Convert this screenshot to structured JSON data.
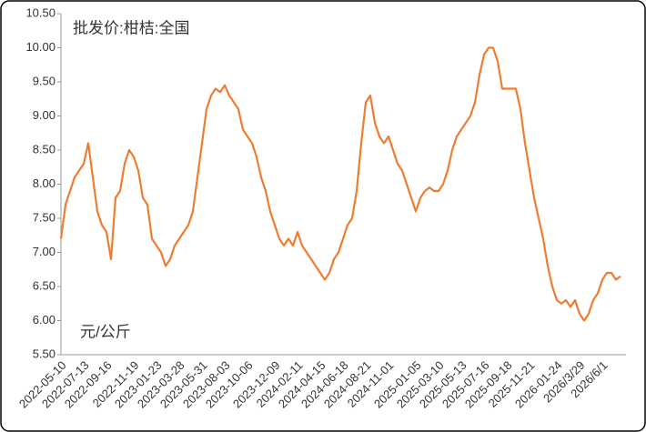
{
  "chart_data": {
    "type": "line",
    "title": "批发价:柑桔:全国",
    "y_label": "元/公斤",
    "categories": [
      "2022-05-10",
      null,
      null,
      null,
      null,
      "2022-07-13",
      null,
      null,
      null,
      null,
      "2022-09-16",
      null,
      null,
      null,
      null,
      null,
      "2022-11-19",
      null,
      null,
      null,
      null,
      "2023-01-23",
      null,
      null,
      null,
      null,
      "2023-03-28",
      null,
      null,
      null,
      null,
      "2023-05-31",
      null,
      null,
      null,
      null,
      "2023-08-03",
      null,
      null,
      null,
      null,
      "2023-10-06",
      null,
      null,
      null,
      null,
      null,
      "2023-12-09",
      null,
      null,
      null,
      null,
      "2024-02-11",
      null,
      null,
      null,
      null,
      "2024-04-15",
      null,
      null,
      null,
      null,
      "2024-06-18",
      null,
      null,
      null,
      null,
      "2024-08-21",
      null,
      null,
      null,
      null,
      "2024-11-01",
      null,
      null,
      null,
      null,
      null,
      "2025-01-05",
      null,
      null,
      null,
      null,
      "2025-03-10",
      null,
      null,
      null,
      null,
      "2025-05-13",
      null,
      null,
      null,
      null,
      "2025-07-16",
      null,
      null,
      null,
      null,
      "2025-09-18",
      null,
      null,
      null,
      null,
      "2025-11-21",
      null,
      null,
      null,
      null,
      null,
      "2026-01-24",
      null,
      null,
      null,
      null,
      "2026/3/29",
      null,
      null,
      null,
      null,
      "2026/6/1",
      null,
      null,
      null,
      null
    ],
    "series": [
      {
        "name": "批发价:柑桔:全国",
        "color": "#ed7d31",
        "values": [
          7.2,
          7.7,
          7.9,
          8.1,
          8.2,
          8.3,
          8.6,
          8.1,
          7.6,
          7.4,
          7.3,
          6.9,
          7.8,
          7.9,
          8.3,
          8.5,
          8.4,
          8.2,
          7.8,
          7.7,
          7.2,
          7.1,
          7.0,
          6.8,
          6.9,
          7.1,
          7.2,
          7.3,
          7.4,
          7.6,
          8.1,
          8.6,
          9.1,
          9.3,
          9.4,
          9.35,
          9.45,
          9.3,
          9.2,
          9.1,
          8.8,
          8.7,
          8.6,
          8.4,
          8.1,
          7.9,
          7.6,
          7.4,
          7.2,
          7.1,
          7.2,
          7.1,
          7.3,
          7.1,
          7.0,
          6.9,
          6.8,
          6.7,
          6.6,
          6.7,
          6.9,
          7.0,
          7.2,
          7.4,
          7.5,
          7.9,
          8.6,
          9.2,
          9.3,
          8.9,
          8.7,
          8.6,
          8.7,
          8.5,
          8.3,
          8.2,
          8.0,
          7.8,
          7.6,
          7.8,
          7.9,
          7.95,
          7.9,
          7.9,
          8.0,
          8.2,
          8.5,
          8.7,
          8.8,
          8.9,
          9.0,
          9.2,
          9.6,
          9.9,
          10.0,
          10.0,
          9.8,
          9.4,
          9.4,
          9.4,
          9.4,
          9.1,
          8.6,
          8.2,
          7.8,
          7.5,
          7.2,
          6.8,
          6.5,
          6.3,
          6.25,
          6.3,
          6.2,
          6.3,
          6.1,
          6.0,
          6.1,
          6.3,
          6.4,
          6.6,
          6.7,
          6.7,
          6.6,
          6.65
        ]
      }
    ],
    "ylim": [
      5.5,
      10.5
    ],
    "yticks": [
      {
        "value": 5.5,
        "label": "5.50"
      },
      {
        "value": 6,
        "label": "6.00"
      },
      {
        "value": 6.5,
        "label": "6.50"
      },
      {
        "value": 7,
        "label": "7.00"
      },
      {
        "value": 7.5,
        "label": "7.50"
      },
      {
        "value": 8,
        "label": "8.00"
      },
      {
        "value": 8.5,
        "label": "8.50"
      },
      {
        "value": 9,
        "label": "9.00"
      },
      {
        "value": 9.5,
        "label": "9.50"
      },
      {
        "value": 10,
        "label": "10.00"
      },
      {
        "value": 10.5,
        "label": "10.50"
      }
    ],
    "grid": false
  }
}
